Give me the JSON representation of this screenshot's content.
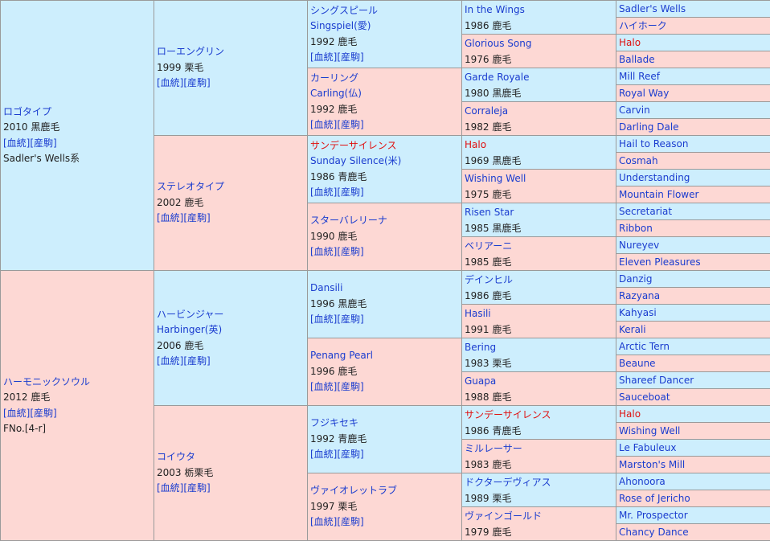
{
  "pedigree": {
    "sire": {
      "name": "ロゴタイプ",
      "info": "2010 黒鹿毛",
      "extra": "Sadler's Wells系",
      "sire": {
        "name": "ローエングリン",
        "info": "1999 栗毛",
        "sire": {
          "name": "シングスピール",
          "name2": "Singspiel(愛)",
          "info": "1992 鹿毛",
          "sire": {
            "name": "In the Wings",
            "info": "1986 鹿毛",
            "sire": "Sadler's Wells",
            "dam": "ハイホーク"
          },
          "dam": {
            "name": "Glorious Song",
            "info": "1976 鹿毛",
            "sire": "Halo",
            "dam": "Ballade"
          }
        },
        "dam": {
          "name": "カーリング",
          "name2": "Carling(仏)",
          "info": "1992 鹿毛",
          "sire": {
            "name": "Garde Royale",
            "info": "1980 黒鹿毛",
            "sire": "Mill Reef",
            "dam": "Royal Way"
          },
          "dam": {
            "name": "Corraleja",
            "info": "1982 鹿毛",
            "sire": "Carvin",
            "dam": "Darling Dale"
          }
        }
      },
      "dam": {
        "name": "ステレオタイプ",
        "info": "2002 鹿毛",
        "sire": {
          "name": "サンデーサイレンス",
          "name2": "Sunday Silence(米)",
          "info": "1986 青鹿毛",
          "sire": {
            "name": "Halo",
            "info": "1969 黒鹿毛",
            "sire": "Hail to Reason",
            "dam": "Cosmah"
          },
          "dam": {
            "name": "Wishing Well",
            "info": "1975 鹿毛",
            "sire": "Understanding",
            "dam": "Mountain Flower"
          }
        },
        "dam": {
          "name": "スターバレリーナ",
          "info": "1990 鹿毛",
          "sire": {
            "name": "Risen Star",
            "info": "1985 黒鹿毛",
            "sire": "Secretariat",
            "dam": "Ribbon"
          },
          "dam": {
            "name": "ベリアーニ",
            "info": "1985 鹿毛",
            "sire": "Nureyev",
            "dam": "Eleven Pleasures"
          }
        }
      }
    },
    "dam": {
      "name": "ハーモニックソウル",
      "info": "2012 鹿毛",
      "extra": "FNo.[4-r]",
      "sire": {
        "name": "ハービンジャー",
        "name2": "Harbinger(英)",
        "info": "2006 鹿毛",
        "sire": {
          "name": "Dansili",
          "info": "1996 黒鹿毛",
          "sire": {
            "name": "デインヒル",
            "info": "1986 鹿毛",
            "sire": "Danzig",
            "dam": "Razyana"
          },
          "dam": {
            "name": "Hasili",
            "info": "1991 鹿毛",
            "sire": "Kahyasi",
            "dam": "Kerali"
          }
        },
        "dam": {
          "name": "Penang Pearl",
          "info": "1996 鹿毛",
          "sire": {
            "name": "Bering",
            "info": "1983 栗毛",
            "sire": "Arctic Tern",
            "dam": "Beaune"
          },
          "dam": {
            "name": "Guapa",
            "info": "1988 鹿毛",
            "sire": "Shareef Dancer",
            "dam": "Sauceboat"
          }
        }
      },
      "dam": {
        "name": "コイウタ",
        "info": "2003 栃栗毛",
        "sire": {
          "name": "フジキセキ",
          "info": "1992 青鹿毛",
          "sire": {
            "name": "サンデーサイレンス",
            "info": "1986 青鹿毛",
            "sire": "Halo",
            "dam": "Wishing Well"
          },
          "dam": {
            "name": "ミルレーサー",
            "info": "1983 鹿毛",
            "sire": "Le Fabuleux",
            "dam": "Marston's Mill"
          }
        },
        "dam": {
          "name": "ヴァイオレットラブ",
          "info": "1997 栗毛",
          "sire": {
            "name": "ドクターデヴィアス",
            "info": "1989 栗毛",
            "sire": "Ahonoora",
            "dam": "Rose of Jericho"
          },
          "dam": {
            "name": "ヴァインゴールド",
            "info": "1979 鹿毛",
            "sire": "Mr. Prospector",
            "dam": "Chancy Dance"
          }
        }
      }
    }
  },
  "links": {
    "bloodline": "[血統]",
    "progeny": "[産駒]"
  },
  "colors": {
    "male_bg": "#cdeefd",
    "female_bg": "#fdd8d4",
    "link": "#1a3ccf",
    "highlight": "#e01010"
  }
}
